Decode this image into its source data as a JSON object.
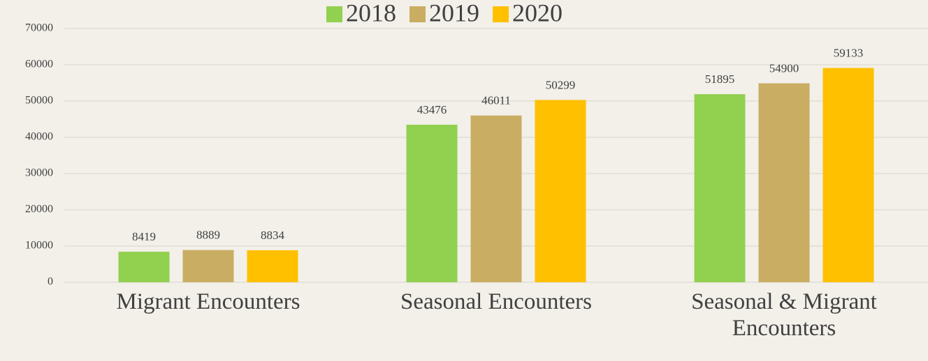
{
  "chart_data": {
    "type": "bar",
    "categories": [
      "Migrant Encounters",
      "Seasonal Encounters",
      "Seasonal & Migrant Encounters"
    ],
    "series": [
      {
        "name": "2018",
        "color": "#92d050",
        "values": [
          8419,
          43476,
          51895
        ]
      },
      {
        "name": "2019",
        "color": "#c9ad63",
        "values": [
          8889,
          46011,
          54900
        ]
      },
      {
        "name": "2020",
        "color": "#ffc000",
        "values": [
          8834,
          50299,
          59133
        ]
      }
    ],
    "ylim": [
      0,
      70000
    ],
    "yticks": [
      0,
      10000,
      20000,
      30000,
      40000,
      50000,
      60000,
      70000
    ],
    "grid": true,
    "legend": "top",
    "data_labels": true
  }
}
